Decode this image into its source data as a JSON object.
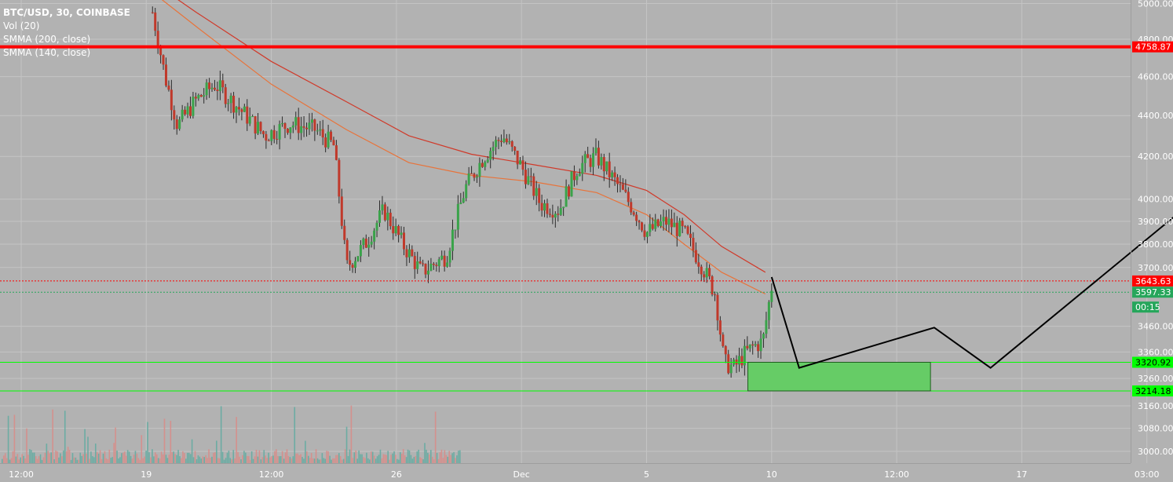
{
  "chart_data": {
    "type": "candlestick",
    "legend": {
      "symbol": "BTC/USD, 30, COINBASE",
      "indicators": [
        "Vol (20)",
        "SMMA (200, close)",
        "SMMA (140, close)"
      ]
    },
    "y_axis": {
      "scale": "log",
      "range": [
        2960,
        5020
      ],
      "ticks": [
        "5000.00",
        "4800.00",
        "4600.00",
        "4400.00",
        "4200.00",
        "4000.00",
        "3900.00",
        "3800.00",
        "3700.00",
        "3460.00",
        "3360.00",
        "3260.00",
        "3160.00",
        "3080.00",
        "3000.00"
      ]
    },
    "x_axis": {
      "ticks": [
        {
          "label": "12:00",
          "t": 0
        },
        {
          "label": "19",
          "t": 1
        },
        {
          "label": "12:00",
          "t": 2
        },
        {
          "label": "26",
          "t": 3
        },
        {
          "label": "Dec",
          "t": 4
        },
        {
          "label": "5",
          "t": 5
        },
        {
          "label": "10",
          "t": 6
        },
        {
          "label": "12:00",
          "t": 7
        },
        {
          "label": "17",
          "t": 8
        },
        {
          "label": "03:00",
          "t": 9
        }
      ]
    },
    "price_badges": [
      {
        "value": "4758.87",
        "color": "#ff0000"
      },
      {
        "value": "3643.63",
        "color": "#ff0000"
      },
      {
        "value": "3597.33",
        "color": "#26a65b"
      },
      {
        "value": "00:15",
        "color": "#26a65b"
      },
      {
        "value": "3320.92",
        "color": "#00ff00"
      },
      {
        "value": "3214.18",
        "color": "#00ff00"
      }
    ],
    "horizontal_lines": [
      {
        "price": 4758.87,
        "color": "#ff0000",
        "style": "solid-thick"
      },
      {
        "price": 3643.63,
        "color": "#ff0000",
        "style": "dotted"
      },
      {
        "price": 3597.33,
        "color": "#26a65b",
        "style": "dotted"
      },
      {
        "price": 3320.92,
        "color": "#00ff00",
        "style": "solid"
      },
      {
        "price": 3214.18,
        "color": "#00ff00",
        "style": "solid"
      }
    ],
    "projection_path": [
      {
        "t": 6.0,
        "price": 3660
      },
      {
        "t": 6.22,
        "price": 3300
      },
      {
        "t": 7.3,
        "price": 3455
      },
      {
        "t": 7.75,
        "price": 3300
      },
      {
        "t": 10.87,
        "price": 4760
      }
    ],
    "support_zone": {
      "t_start": 5.81,
      "t_end": 7.27,
      "price_low": 3214.18,
      "price_high": 3320.92,
      "color": "#66cc66"
    },
    "price_path": [
      {
        "t": 1.05,
        "price": 4950
      },
      {
        "t": 1.15,
        "price": 4600
      },
      {
        "t": 1.25,
        "price": 4350
      },
      {
        "t": 1.4,
        "price": 4480
      },
      {
        "t": 1.55,
        "price": 4560
      },
      {
        "t": 1.75,
        "price": 4430
      },
      {
        "t": 1.95,
        "price": 4300
      },
      {
        "t": 2.15,
        "price": 4360
      },
      {
        "t": 2.35,
        "price": 4330
      },
      {
        "t": 2.5,
        "price": 4250
      },
      {
        "t": 2.6,
        "price": 3700
      },
      {
        "t": 2.75,
        "price": 3800
      },
      {
        "t": 2.9,
        "price": 3950
      },
      {
        "t": 3.05,
        "price": 3800
      },
      {
        "t": 3.2,
        "price": 3680
      },
      {
        "t": 3.4,
        "price": 3750
      },
      {
        "t": 3.55,
        "price": 4050
      },
      {
        "t": 3.7,
        "price": 4200
      },
      {
        "t": 3.85,
        "price": 4300
      },
      {
        "t": 4.0,
        "price": 4150
      },
      {
        "t": 4.15,
        "price": 3980
      },
      {
        "t": 4.3,
        "price": 3950
      },
      {
        "t": 4.45,
        "price": 4150
      },
      {
        "t": 4.6,
        "price": 4200
      },
      {
        "t": 4.75,
        "price": 4080
      },
      {
        "t": 4.9,
        "price": 3950
      },
      {
        "t": 5.0,
        "price": 3850
      },
      {
        "t": 5.15,
        "price": 3900
      },
      {
        "t": 5.3,
        "price": 3850
      },
      {
        "t": 5.45,
        "price": 3700
      },
      {
        "t": 5.55,
        "price": 3590
      },
      {
        "t": 5.62,
        "price": 3320
      },
      {
        "t": 5.7,
        "price": 3300
      },
      {
        "t": 5.78,
        "price": 3350
      },
      {
        "t": 5.85,
        "price": 3380
      },
      {
        "t": 5.93,
        "price": 3400
      },
      {
        "t": 6.0,
        "price": 3620
      }
    ],
    "smma_200": [
      {
        "t": 0.9,
        "price": 5200
      },
      {
        "t": 1.4,
        "price": 4950
      },
      {
        "t": 2.0,
        "price": 4680
      },
      {
        "t": 2.6,
        "price": 4470
      },
      {
        "t": 3.1,
        "price": 4300
      },
      {
        "t": 3.6,
        "price": 4210
      },
      {
        "t": 4.1,
        "price": 4160
      },
      {
        "t": 4.6,
        "price": 4110
      },
      {
        "t": 5.0,
        "price": 4040
      },
      {
        "t": 5.3,
        "price": 3930
      },
      {
        "t": 5.6,
        "price": 3790
      },
      {
        "t": 5.95,
        "price": 3680
      }
    ],
    "smma_140": [
      {
        "t": 0.9,
        "price": 5150
      },
      {
        "t": 1.4,
        "price": 4870
      },
      {
        "t": 2.0,
        "price": 4560
      },
      {
        "t": 2.6,
        "price": 4330
      },
      {
        "t": 3.1,
        "price": 4170
      },
      {
        "t": 3.6,
        "price": 4110
      },
      {
        "t": 4.1,
        "price": 4080
      },
      {
        "t": 4.6,
        "price": 4030
      },
      {
        "t": 5.0,
        "price": 3930
      },
      {
        "t": 5.3,
        "price": 3800
      },
      {
        "t": 5.6,
        "price": 3680
      },
      {
        "t": 5.95,
        "price": 3590
      }
    ],
    "colors": {
      "background": "#b2b2b2",
      "grid": "#c4c4c4",
      "axis_text": "#ffffff",
      "candle_up": "#3aa34a",
      "candle_down": "#c0392b",
      "smma_200": "#d03a2a",
      "smma_140": "#e8733a",
      "volume_up": "#5faaa0",
      "volume_down": "#d98a86",
      "projection": "#000000"
    }
  }
}
